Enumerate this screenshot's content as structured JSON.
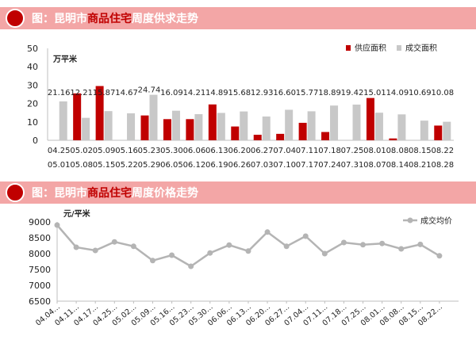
{
  "header1": {
    "prefix": "图：",
    "part1": "昆明市",
    "highlight": "商品住宅",
    "part2": "周度供求走势"
  },
  "header2": {
    "prefix": "图：",
    "part1": "昆明市",
    "highlight": "商品住宅",
    "part2": "周度价格走势"
  },
  "colors": {
    "supply": "#c00000",
    "deal": "#c8c8c8",
    "price_line": "#b4b4b4",
    "header_band": "#f3a6a6",
    "header_badge": "#c00000"
  },
  "chart_data": [
    {
      "type": "bar",
      "title": "昆明市商品住宅周度供求走势",
      "ylabel": "万平米",
      "ylim": [
        0,
        50
      ],
      "yticks": [
        0,
        10,
        20,
        30,
        40,
        50
      ],
      "categories": [
        "04.25",
        "05.02",
        "05.09",
        "05.16",
        "05.23",
        "05.30",
        "06.06",
        "06.13",
        "06.20",
        "06.27",
        "07.04",
        "07.11",
        "07.18",
        "07.25",
        "08.01",
        "08.08",
        "08.15",
        "08.22"
      ],
      "categories_end": [
        "05.01",
        "05.08",
        "05.15",
        "05.22",
        "05.29",
        "06.05",
        "06.12",
        "06.19",
        "06.26",
        "07.03",
        "07.10",
        "07.17",
        "07.24",
        "07.31",
        "08.07",
        "08.14",
        "08.21",
        "08.28"
      ],
      "legend": [
        "供应面积",
        "成交面积"
      ],
      "series": [
        {
          "name": "供应面积",
          "values": [
            null,
            25.5,
            29.5,
            null,
            13.5,
            11.5,
            11.5,
            19.5,
            7.5,
            3.0,
            3.5,
            9.5,
            4.5,
            null,
            23.0,
            1.0,
            null,
            8.0
          ]
        },
        {
          "name": "成交面积",
          "values": [
            21.16,
            12.21,
            15.87,
            14.67,
            24.74,
            16.09,
            14.21,
            14.89,
            15.68,
            12.93,
            16.6,
            15.77,
            18.89,
            19.42,
            15.01,
            14.09,
            10.69,
            10.08
          ]
        }
      ],
      "data_labels": [
        "21.16",
        "12.21",
        "15.87",
        "14.67",
        "24.74",
        "16.09",
        "14.21",
        "14.89",
        "15.68",
        "12.93",
        "16.60",
        "15.77",
        "18.89",
        "19.42",
        "15.01",
        "14.09",
        "10.69",
        "10.08"
      ]
    },
    {
      "type": "line",
      "title": "昆明市商品住宅周度价格走势",
      "ylabel": "元/平米",
      "ylim": [
        6500,
        9000
      ],
      "yticks": [
        6500,
        7000,
        7500,
        8000,
        8500,
        9000
      ],
      "x": [
        "04.04...",
        "04.11...",
        "04.17...",
        "04.25...",
        "05.02...",
        "05.09...",
        "05.16...",
        "05.23...",
        "05.30...",
        "06.06...",
        "06.13...",
        "06.20...",
        "06.27...",
        "07.04...",
        "07.11...",
        "07.18...",
        "07.25...",
        "08.01...",
        "08.08...",
        "08.15...",
        "08.22..."
      ],
      "legend": [
        "成交均价"
      ],
      "series": [
        {
          "name": "成交均价",
          "values": [
            8900,
            8200,
            8100,
            8370,
            8230,
            7780,
            7950,
            7600,
            8020,
            8270,
            8080,
            8680,
            8230,
            8550,
            8000,
            8350,
            8280,
            8320,
            8150,
            8290,
            7930
          ]
        }
      ]
    }
  ]
}
